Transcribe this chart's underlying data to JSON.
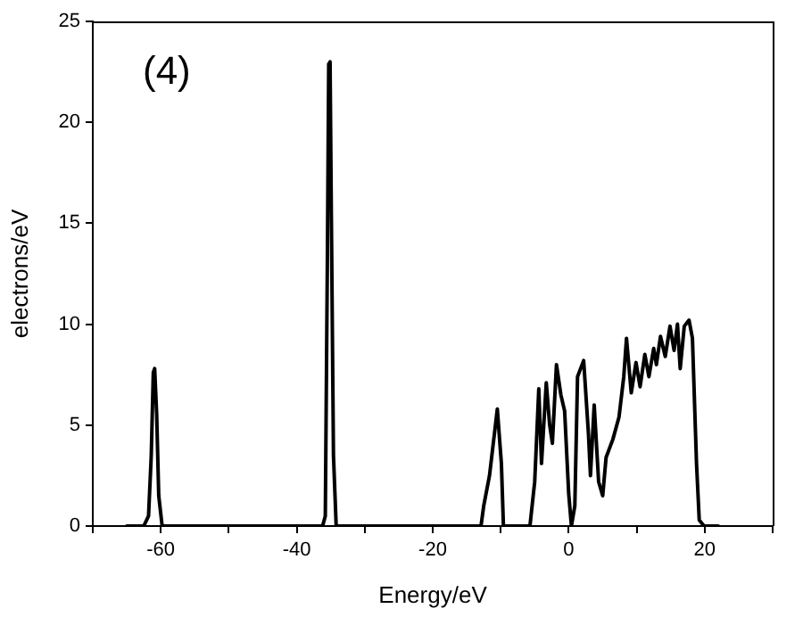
{
  "chart_data": {
    "type": "line",
    "xlabel": "Energy/eV",
    "ylabel": "electrons/eV",
    "annotations": [
      "(4)"
    ],
    "xlim": [
      -70,
      30
    ],
    "xticks": [
      {
        "value": -70,
        "label": null
      },
      -60,
      {
        "value": -50,
        "label": null
      },
      -40,
      {
        "value": -30,
        "label": null
      },
      -20,
      {
        "value": -10,
        "label": null
      },
      0,
      {
        "value": 10,
        "label": null
      },
      20,
      {
        "value": 30,
        "label": null
      }
    ],
    "ylim": [
      0,
      25
    ],
    "yticks": [
      0,
      5,
      10,
      15,
      20,
      25
    ],
    "marker": "none",
    "line_style": "solid",
    "legend": false,
    "series": [
      {
        "color": "#000000",
        "x": [
          -65,
          -62.5,
          -61.8,
          -61.4,
          -61.1,
          -60.9,
          -60.6,
          -60.3,
          -59.8,
          -36.2,
          -35.8,
          -35.5,
          -35.3,
          -35.1,
          -34.9,
          -34.6,
          -34.2,
          -12.9,
          -12.5,
          -11.65,
          -10.5,
          -9.9,
          -9.6,
          -5.7,
          -5.0,
          -4.4,
          -4.0,
          -3.3,
          -2.8,
          -2.4,
          -1.8,
          -1.15,
          -0.6,
          0.0,
          0.4,
          0.9,
          1.3,
          2.2,
          2.9,
          3.2,
          3.75,
          4.4,
          5.0,
          5.5,
          6.5,
          7.4,
          8.1,
          8.5,
          9.2,
          9.9,
          10.5,
          11.2,
          11.8,
          12.5,
          12.9,
          13.5,
          14.2,
          14.9,
          15.5,
          16.0,
          16.4,
          17.0,
          17.7,
          18.2,
          18.8,
          19.2,
          19.9,
          22
        ],
        "values": [
          0,
          0,
          0.5,
          3.5,
          7.6,
          7.8,
          5.5,
          1.5,
          0,
          0,
          0.5,
          13,
          22.9,
          23,
          15,
          3.5,
          0,
          0,
          1.0,
          2.5,
          5.8,
          3.1,
          0,
          0,
          2.2,
          6.8,
          3.1,
          7.1,
          5.0,
          4.1,
          8.0,
          6.5,
          5.7,
          1.6,
          0,
          1.0,
          7.4,
          8.2,
          4.6,
          2.5,
          6.0,
          2.2,
          1.5,
          3.4,
          4.3,
          5.4,
          7.4,
          9.3,
          6.6,
          8.1,
          6.9,
          8.5,
          7.4,
          8.8,
          8.0,
          9.4,
          8.4,
          9.9,
          8.7,
          10.0,
          7.8,
          9.9,
          10.2,
          9.3,
          3.1,
          0.3,
          0,
          0
        ]
      }
    ]
  }
}
